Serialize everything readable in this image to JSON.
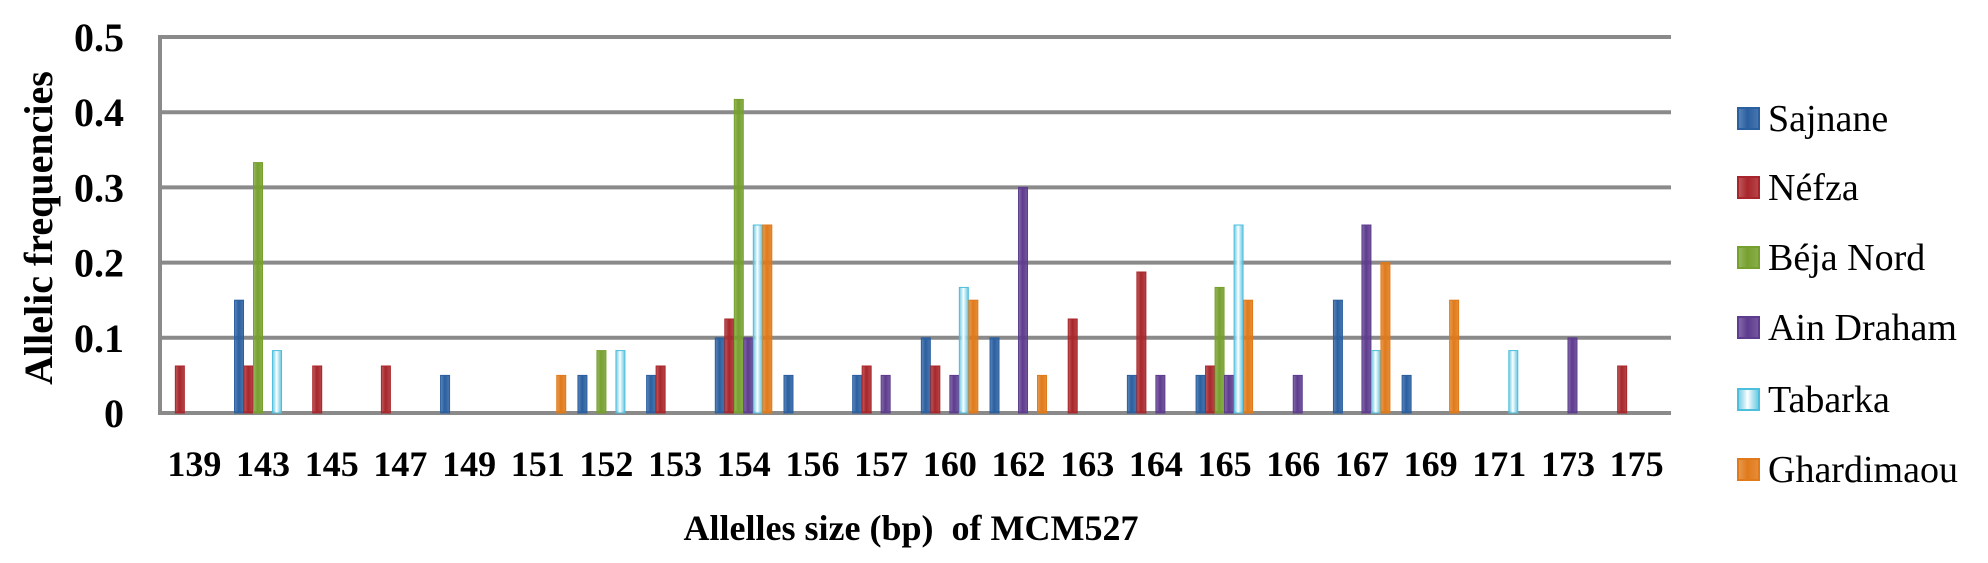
{
  "chart_data": {
    "type": "bar",
    "title": "",
    "xlabel": "Allelles size (bp)  of MCM527",
    "ylabel": "Allelic frequencies",
    "ylim": [
      0,
      0.5
    ],
    "yticks": [
      "0",
      "0.1",
      "0.2",
      "0.3",
      "0.4",
      "0.5"
    ],
    "grid": true,
    "legend_position": "right",
    "categories": [
      "139",
      "143",
      "145",
      "147",
      "149",
      "151",
      "152",
      "153",
      "154",
      "156",
      "157",
      "160",
      "162",
      "163",
      "164",
      "165",
      "166",
      "167",
      "169",
      "171",
      "173",
      "175"
    ],
    "series": [
      {
        "name": "Sajnane",
        "color": "#2a5fa0",
        "values": [
          0,
          0.15,
          0,
          0,
          0.05,
          0,
          0.05,
          0.05,
          0.1,
          0.05,
          0.05,
          0.1,
          0.1,
          0,
          0.05,
          0.05,
          0,
          0.15,
          0.05,
          0,
          0,
          0
        ]
      },
      {
        "name": "Néfza",
        "color": "#a8262b",
        "values": [
          0.0625,
          0.0625,
          0.0625,
          0.0625,
          0,
          0,
          0,
          0.0625,
          0.125,
          0,
          0.0625,
          0.0625,
          0,
          0.125,
          0.1875,
          0.0625,
          0,
          0,
          0,
          0,
          0,
          0.0625
        ]
      },
      {
        "name": "Béja Nord",
        "color": "#76a02e",
        "values": [
          0,
          0.333,
          0,
          0,
          0,
          0,
          0.083,
          0,
          0.417,
          0,
          0,
          0,
          0,
          0,
          0,
          0.167,
          0,
          0,
          0,
          0,
          0,
          0
        ]
      },
      {
        "name": "Ain Draham",
        "color": "#5e3c8e",
        "values": [
          0,
          0,
          0,
          0,
          0,
          0,
          0,
          0,
          0.1,
          0,
          0.05,
          0.05,
          0.3,
          0,
          0.05,
          0.05,
          0.05,
          0.25,
          0,
          0,
          0.1,
          0
        ]
      },
      {
        "name": "Tabarka",
        "color": "#4cbfdd",
        "values": [
          0,
          0.083,
          0,
          0,
          0,
          0,
          0.083,
          0,
          0.25,
          0,
          0,
          0.167,
          0,
          0,
          0,
          0.25,
          0,
          0.083,
          0,
          0.083,
          0,
          0
        ]
      },
      {
        "name": "Ghardimaou",
        "color": "#e07a1a",
        "values": [
          0,
          0,
          0,
          0,
          0,
          0.05,
          0,
          0,
          0.25,
          0,
          0,
          0.15,
          0.05,
          0,
          0,
          0.15,
          0,
          0.2,
          0.15,
          0,
          0,
          0
        ]
      }
    ]
  }
}
